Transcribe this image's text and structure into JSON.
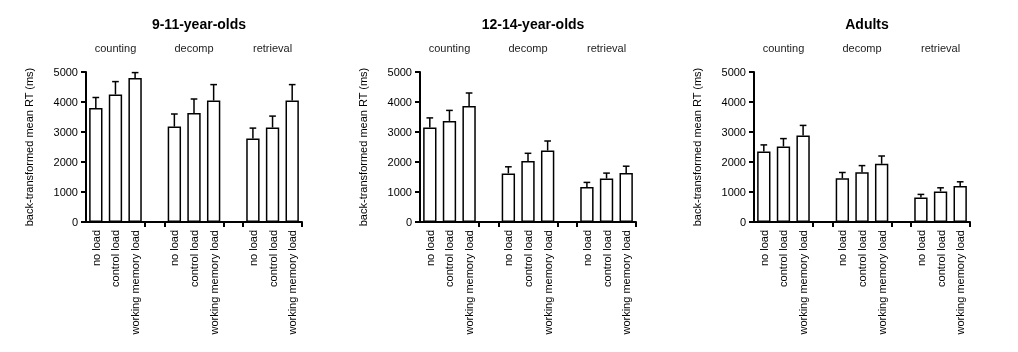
{
  "chart_data": [
    {
      "type": "bar",
      "title": "9-11-year-olds",
      "ylabel": "back-transformed mean RT (ms)",
      "annotations": [
        "counting",
        "decomp",
        "retrieval"
      ],
      "categories": [
        "no load",
        "control load",
        "working memory load",
        null,
        "no load",
        "control load",
        "working memory load",
        null,
        "no load",
        "control load",
        "working memory load"
      ],
      "values": [
        3800,
        4250,
        4800,
        null,
        3180,
        3630,
        4050,
        null,
        2780,
        3150,
        4050
      ],
      "errors": [
        [
          3800,
          4150
        ],
        [
          4250,
          4680
        ],
        [
          4800,
          4980
        ],
        null,
        [
          3180,
          3600
        ],
        [
          3630,
          4100
        ],
        [
          4050,
          4580
        ],
        null,
        [
          2780,
          3130
        ],
        [
          3150,
          3530
        ],
        [
          4050,
          4580
        ]
      ],
      "color": "#ffffff",
      "ylim": [
        0,
        5000
      ],
      "yticks": [
        0,
        1000,
        2000,
        3000,
        4000,
        5000
      ],
      "grid": false
    },
    {
      "type": "bar",
      "title": "12-14-year-olds",
      "ylabel": "back-transformed mean RT (ms)",
      "annotations": [
        "counting",
        "decomp",
        "retrieval"
      ],
      "categories": [
        "no load",
        "control load",
        "working memory load",
        null,
        "no load",
        "control load",
        "working memory load",
        null,
        "no load",
        "control load",
        "working memory load"
      ],
      "values": [
        3150,
        3370,
        3870,
        null,
        1620,
        2030,
        2380,
        null,
        1170,
        1450,
        1630
      ],
      "errors": [
        [
          3150,
          3470
        ],
        [
          3370,
          3720
        ],
        [
          3870,
          4300
        ],
        null,
        [
          1620,
          1840
        ],
        [
          2030,
          2290
        ],
        [
          2380,
          2700
        ],
        null,
        [
          1170,
          1320
        ],
        [
          1450,
          1630
        ],
        [
          1630,
          1860
        ]
      ],
      "color": "#ffffff",
      "ylim": [
        0,
        5000
      ],
      "yticks": [
        0,
        1000,
        2000,
        3000,
        4000,
        5000
      ],
      "grid": false
    },
    {
      "type": "bar",
      "title": "Adults",
      "ylabel": "back-transformed mean RT (ms)",
      "annotations": [
        "counting",
        "decomp",
        "retrieval"
      ],
      "categories": [
        "no load",
        "control load",
        "working memory load",
        null,
        "no load",
        "control load",
        "working memory load",
        null,
        "no load",
        "control load",
        "working memory load"
      ],
      "values": [
        2350,
        2520,
        2880,
        null,
        1460,
        1660,
        1940,
        null,
        820,
        1020,
        1200
      ],
      "errors": [
        [
          2350,
          2570
        ],
        [
          2520,
          2780
        ],
        [
          2880,
          3220
        ],
        null,
        [
          1460,
          1650
        ],
        [
          1660,
          1880
        ],
        [
          1940,
          2200
        ],
        null,
        [
          820,
          920
        ],
        [
          1020,
          1140
        ],
        [
          1200,
          1340
        ]
      ],
      "color": "#ffffff",
      "ylim": [
        0,
        5000
      ],
      "yticks": [
        0,
        1000,
        2000,
        3000,
        4000,
        5000
      ],
      "grid": false
    }
  ]
}
